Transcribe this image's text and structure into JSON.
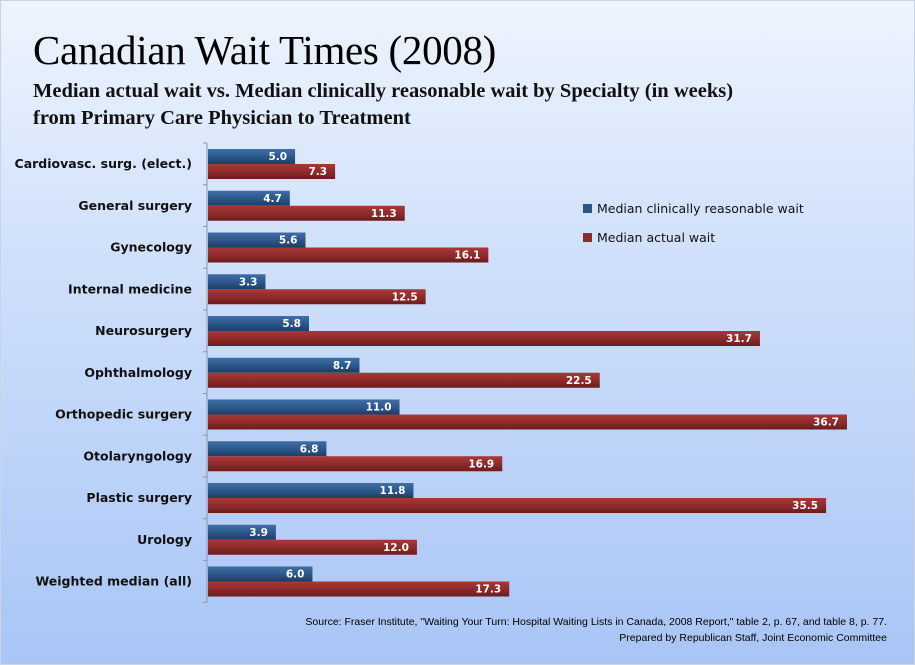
{
  "header": {
    "title": "Canadian Wait Times (2008)",
    "subtitle_line1": "Median actual wait vs. Median clinically reasonable wait by Specialty (in weeks)",
    "subtitle_line2": "from Primary Care Physician to Treatment"
  },
  "footer": {
    "source": "Source: Fraser Institute, \"Waiting Your Turn: Hospital Waiting Lists in Canada, 2008 Report,\"  table 2, p. 67, and table 8, p. 77.",
    "prepared_by": "Prepared by Republican Staff, Joint Economic Committee"
  },
  "chart_data": {
    "type": "bar",
    "orientation": "horizontal",
    "title": "Canadian Wait Times (2008)",
    "subtitle": "Median actual wait vs. Median clinically reasonable wait by Specialty (in weeks) from Primary Care Physician to Treatment",
    "xlabel": "",
    "ylabel": "",
    "xlim": [
      0,
      37
    ],
    "grid": false,
    "legend_position": "right",
    "categories": [
      "Cardiovasc. surg. (elect.)",
      "General surgery",
      "Gynecology",
      "Internal medicine",
      "Neurosurgery",
      "Ophthalmology",
      "Orthopedic surgery",
      "Otolaryngology",
      "Plastic surgery",
      "Urology",
      "Weighted median (all)"
    ],
    "series": [
      {
        "name": "Median clinically reasonable wait",
        "color": "#2b5689",
        "values": [
          5.0,
          4.7,
          5.6,
          3.3,
          5.8,
          8.7,
          11.0,
          6.8,
          11.8,
          3.9,
          6.0
        ]
      },
      {
        "name": "Median actual wait",
        "color": "#8e2a2a",
        "values": [
          7.3,
          11.3,
          16.1,
          12.5,
          31.7,
          22.5,
          36.7,
          16.9,
          35.5,
          12.0,
          17.3
        ]
      }
    ]
  }
}
